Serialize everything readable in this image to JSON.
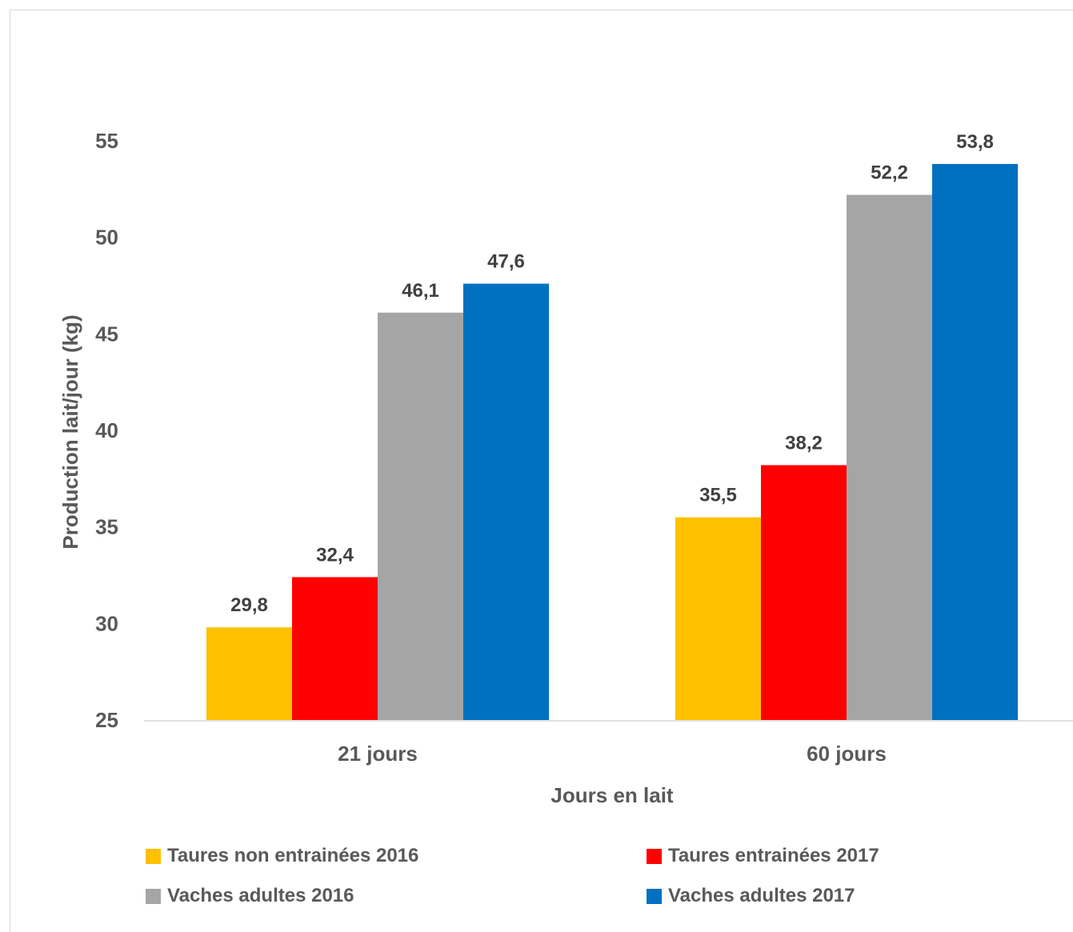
{
  "chart_data": {
    "type": "bar",
    "title": "",
    "xlabel": "Jours en lait",
    "ylabel": "Production lait/jour (kg)",
    "categories": [
      "21 jours",
      "60 jours"
    ],
    "ylim": [
      25,
      55
    ],
    "yticks": [
      25,
      30,
      35,
      40,
      45,
      50,
      55
    ],
    "ytick_labels": [
      "25",
      "30",
      "35",
      "40",
      "45",
      "50",
      "55"
    ],
    "grid": false,
    "legend_position": "bottom",
    "series": [
      {
        "name": "Taures non entrainées 2016",
        "color": "#FFC000",
        "values": [
          29.8,
          35.5
        ],
        "labels": [
          "29,8",
          "35,5"
        ]
      },
      {
        "name": "Taures entrainées 2017",
        "color": "#FF0000",
        "values": [
          32.4,
          38.2
        ],
        "labels": [
          "32,4",
          "38,2"
        ]
      },
      {
        "name": "Vaches adultes 2016",
        "color": "#A5A5A5",
        "values": [
          46.1,
          52.2
        ],
        "labels": [
          "46,1",
          "52,2"
        ]
      },
      {
        "name": "Vaches adultes 2017",
        "color": "#0070C0",
        "values": [
          47.6,
          53.8
        ],
        "labels": [
          "47,6",
          "53,8"
        ]
      }
    ]
  }
}
